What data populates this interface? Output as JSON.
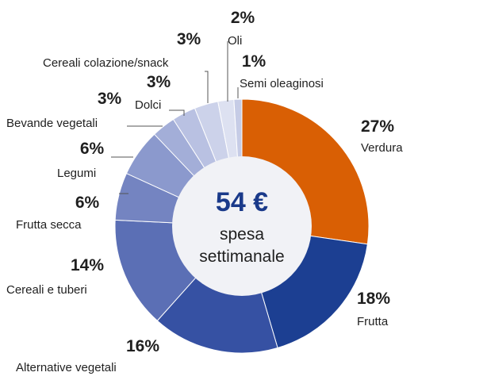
{
  "chart_data": {
    "type": "pie",
    "center": {
      "value": "54 €",
      "line1": "spesa",
      "line2": "settimanale"
    },
    "slices": [
      {
        "label": "Verdura",
        "percent_label": "27%",
        "value": 27,
        "color": "#d95f04"
      },
      {
        "label": "Frutta",
        "percent_label": "18%",
        "value": 18,
        "color": "#1c3f92"
      },
      {
        "label": "Alternative vegetali",
        "percent_label": "16%",
        "value": 16,
        "color": "#3651a3"
      },
      {
        "label": "Cereali e tuberi",
        "percent_label": "14%",
        "value": 14,
        "color": "#5b6fb5"
      },
      {
        "label": "Frutta secca",
        "percent_label": "6%",
        "value": 6,
        "color": "#7484c1"
      },
      {
        "label": "Legumi",
        "percent_label": "6%",
        "value": 6,
        "color": "#8b99cd"
      },
      {
        "label": "Bevande vegetali",
        "percent_label": "3%",
        "value": 3,
        "color": "#a3aed8"
      },
      {
        "label": "Dolci",
        "percent_label": "3%",
        "value": 3,
        "color": "#b9c1e2"
      },
      {
        "label": "Cereali colazione/snack",
        "percent_label": "3%",
        "value": 3,
        "color": "#ccd2ea"
      },
      {
        "label": "Oli",
        "percent_label": "2%",
        "value": 2,
        "color": "#dde1f1"
      },
      {
        "label": "Semi oleaginosi",
        "percent_label": "1%",
        "value": 1,
        "color": "#c6cce6"
      }
    ]
  }
}
